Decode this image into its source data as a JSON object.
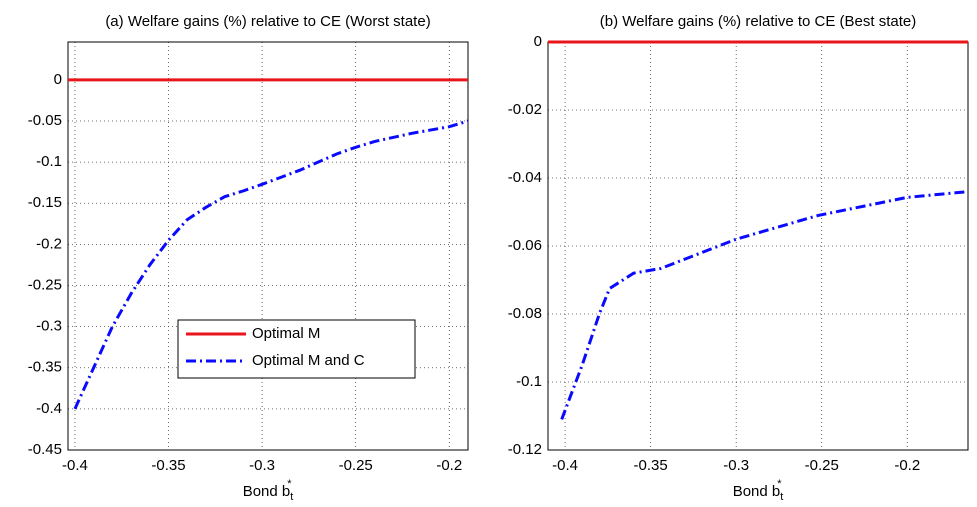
{
  "chart_data": [
    {
      "type": "line",
      "title": "(a) Welfare gains (%) relative to CE (Worst state)",
      "x_label": "Bond b",
      "x_label_sub": "t",
      "x_label_sup": "*",
      "xlim": [
        -0.4037,
        -0.19
      ],
      "ylim": [
        -0.45,
        0.046
      ],
      "xticks": [
        -0.4,
        -0.35,
        -0.3,
        -0.25,
        -0.2
      ],
      "yticks": [
        0,
        -0.05,
        -0.1,
        -0.15,
        -0.2,
        -0.25,
        -0.3,
        -0.35,
        -0.4,
        -0.45
      ],
      "grid": true,
      "legend": "inside",
      "series": [
        {
          "name": "Optimal M",
          "color": "#e8161b",
          "style": "solid",
          "x": [
            -0.4037,
            -0.19
          ],
          "values": [
            0,
            0
          ]
        },
        {
          "name": "Optimal M and C",
          "color": "#0a0aff",
          "style": "dashdot",
          "x": [
            -0.4,
            -0.39,
            -0.38,
            -0.37,
            -0.36,
            -0.35,
            -0.34,
            -0.33,
            -0.32,
            -0.31,
            -0.3,
            -0.28,
            -0.26,
            -0.25,
            -0.24,
            -0.22,
            -0.2,
            -0.19
          ],
          "values": [
            -0.4,
            -0.35,
            -0.3,
            -0.26,
            -0.225,
            -0.195,
            -0.17,
            -0.155,
            -0.142,
            -0.135,
            -0.127,
            -0.11,
            -0.09,
            -0.082,
            -0.075,
            -0.065,
            -0.057,
            -0.05
          ]
        }
      ]
    },
    {
      "type": "line",
      "title": "(b) Welfare gains (%) relative to CE (Best state)",
      "x_label": "Bond b",
      "x_label_sub": "t",
      "x_label_sup": "*",
      "xlim": [
        -0.41,
        -0.1645
      ],
      "ylim": [
        -0.12,
        0
      ],
      "xticks": [
        -0.4,
        -0.35,
        -0.3,
        -0.25,
        -0.2
      ],
      "yticks": [
        0,
        -0.02,
        -0.04,
        -0.06,
        -0.08,
        -0.1,
        -0.12
      ],
      "grid": true,
      "series": [
        {
          "color": "#e8161b",
          "style": "solid",
          "x": [
            -0.41,
            -0.1645
          ],
          "values": [
            0,
            0
          ]
        },
        {
          "color": "#0a0aff",
          "style": "dashdot",
          "x": [
            -0.402,
            -0.39,
            -0.38,
            -0.374,
            -0.36,
            -0.344,
            -0.3,
            -0.252,
            -0.2,
            -0.1645
          ],
          "values": [
            -0.111,
            -0.095,
            -0.08,
            -0.0725,
            -0.068,
            -0.0666,
            -0.058,
            -0.051,
            -0.0457,
            -0.044
          ]
        }
      ]
    }
  ]
}
